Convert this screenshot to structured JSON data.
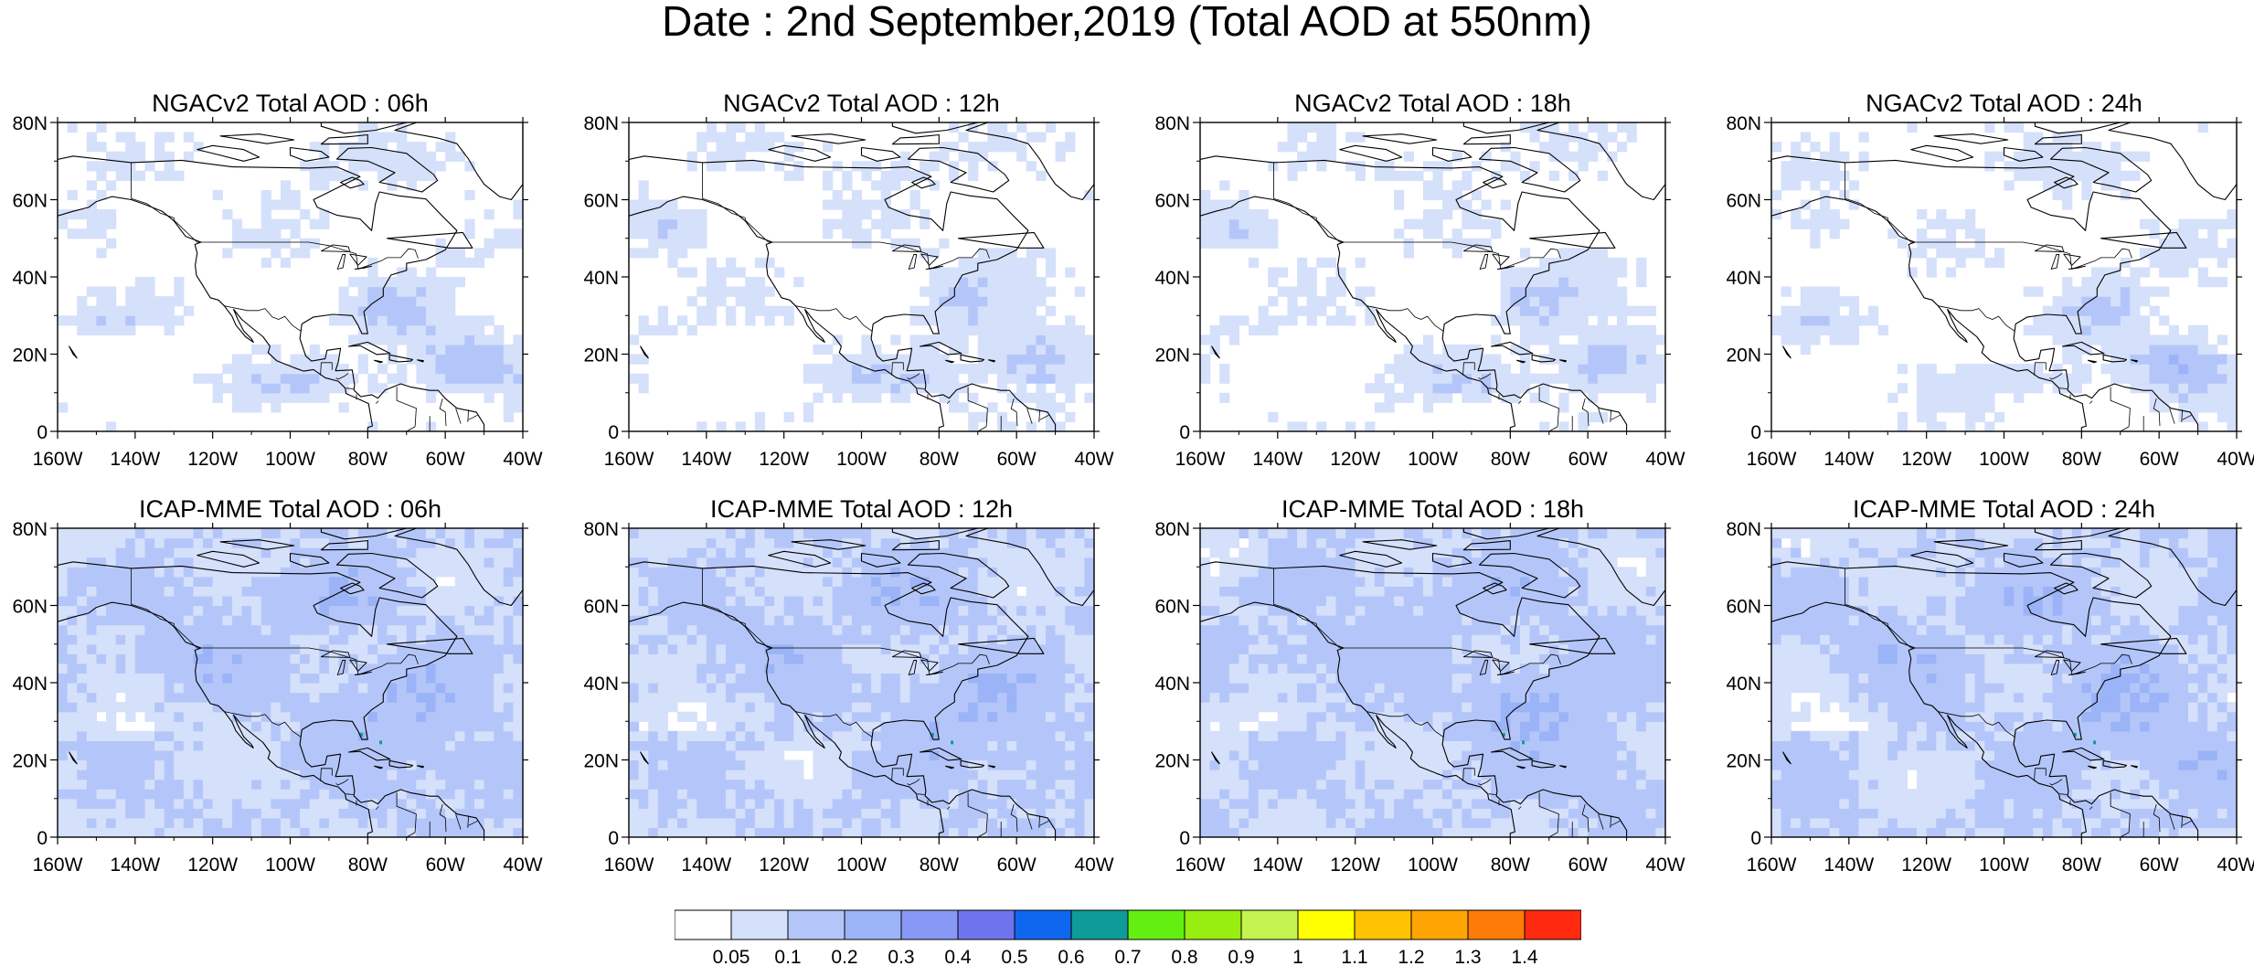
{
  "title": "Date : 2nd September,2019 (Total AOD at 550nm)",
  "panels": [
    {
      "title": "NGACv2 Total AOD : 06h",
      "model": "ngac",
      "seed": 11
    },
    {
      "title": "NGACv2 Total AOD : 12h",
      "model": "ngac",
      "seed": 23
    },
    {
      "title": "NGACv2 Total AOD : 18h",
      "model": "ngac",
      "seed": 37
    },
    {
      "title": "NGACv2 Total AOD : 24h",
      "model": "ngac",
      "seed": 41
    },
    {
      "title": "ICAP-MME Total AOD : 06h",
      "model": "icap",
      "seed": 53
    },
    {
      "title": "ICAP-MME Total AOD : 12h",
      "model": "icap",
      "seed": 67
    },
    {
      "title": "ICAP-MME Total AOD : 18h",
      "model": "icap",
      "seed": 79
    },
    {
      "title": "ICAP-MME Total AOD : 24h",
      "model": "icap",
      "seed": 83
    }
  ],
  "axes": {
    "x_ticks": [
      "160W",
      "140W",
      "120W",
      "100W",
      "80W",
      "60W",
      "40W"
    ],
    "y_ticks": [
      "0",
      "20N",
      "40N",
      "60N",
      "80N"
    ],
    "lon_range": [
      -160,
      -40
    ],
    "lat_range": [
      0,
      80
    ]
  },
  "colorbar": {
    "labels": [
      "0.05",
      "0.1",
      "0.2",
      "0.3",
      "0.4",
      "0.5",
      "0.6",
      "0.7",
      "0.8",
      "0.9",
      "1",
      "1.1",
      "1.2",
      "1.3",
      "1.4"
    ],
    "colors": [
      "#ffffff",
      "#d5e0fb",
      "#b4c6f9",
      "#9bb3f7",
      "#8799f4",
      "#6f74ee",
      "#0f67ef",
      "#0f9c98",
      "#64ef12",
      "#98ee10",
      "#c5f34f",
      "#ffff00",
      "#ffc303",
      "#ffa503",
      "#ff7b07",
      "#ff2a10"
    ]
  }
}
